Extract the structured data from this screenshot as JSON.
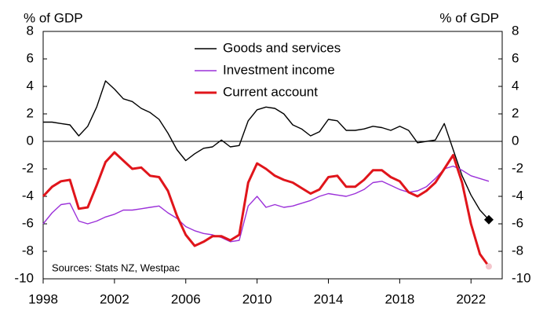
{
  "chart_data": {
    "type": "line",
    "ylabel": "% of GDP",
    "y2label": "% of GDP",
    "annotation": "Sources: Stats NZ, Westpac",
    "x": [
      1998,
      1998.5,
      1999,
      1999.5,
      2000,
      2000.5,
      2001,
      2001.5,
      2002,
      2002.5,
      2003,
      2003.5,
      2004,
      2004.5,
      2005,
      2005.5,
      2006,
      2006.5,
      2007,
      2007.5,
      2008,
      2008.5,
      2009,
      2009.5,
      2010,
      2010.5,
      2011,
      2011.5,
      2012,
      2012.5,
      2013,
      2013.5,
      2014,
      2014.5,
      2015,
      2015.5,
      2016,
      2016.5,
      2017,
      2017.5,
      2018,
      2018.5,
      2019,
      2019.5,
      2020,
      2020.5,
      2021,
      2021.5,
      2022,
      2022.5,
      2023
    ],
    "series": [
      {
        "name": "Goods and services",
        "color": "#000000",
        "marker": "diamond",
        "values": [
          1.4,
          1.4,
          1.3,
          1.2,
          0.4,
          1.1,
          2.5,
          4.4,
          3.8,
          3.1,
          2.9,
          2.4,
          2.1,
          1.6,
          0.6,
          -0.6,
          -1.4,
          -0.9,
          -0.5,
          -0.4,
          0.1,
          -0.4,
          -0.3,
          1.5,
          2.3,
          2.5,
          2.4,
          2.0,
          1.2,
          0.9,
          0.4,
          0.7,
          1.6,
          1.5,
          0.8,
          0.8,
          0.9,
          1.1,
          1.0,
          0.8,
          1.1,
          0.8,
          -0.1,
          0.0,
          0.1,
          1.3,
          -0.6,
          -2.5,
          -3.9,
          -5.0,
          -5.7
        ]
      },
      {
        "name": "Investment income",
        "color": "#9b30d9",
        "values": [
          -6.0,
          -5.2,
          -4.6,
          -4.5,
          -5.8,
          -6.0,
          -5.8,
          -5.5,
          -5.3,
          -5.0,
          -5.0,
          -4.9,
          -4.8,
          -4.7,
          -5.2,
          -5.6,
          -6.2,
          -6.5,
          -6.7,
          -6.8,
          -7.0,
          -7.3,
          -7.2,
          -4.7,
          -4.0,
          -4.8,
          -4.6,
          -4.8,
          -4.7,
          -4.5,
          -4.3,
          -4.0,
          -3.8,
          -3.9,
          -4.0,
          -3.8,
          -3.5,
          -3.0,
          -2.9,
          -3.2,
          -3.5,
          -3.7,
          -3.6,
          -3.3,
          -2.7,
          -2.0,
          -1.8,
          -2.1,
          -2.5,
          -2.7,
          -2.9
        ]
      },
      {
        "name": "Current account",
        "color": "#e0151b",
        "marker": "circle",
        "values": [
          -4.0,
          -3.3,
          -2.9,
          -2.8,
          -4.9,
          -4.8,
          -3.2,
          -1.5,
          -0.8,
          -1.4,
          -2.0,
          -1.9,
          -2.5,
          -2.6,
          -3.6,
          -5.4,
          -6.8,
          -7.6,
          -7.3,
          -6.9,
          -6.9,
          -7.2,
          -6.8,
          -3.0,
          -1.6,
          -2.0,
          -2.5,
          -2.8,
          -3.0,
          -3.4,
          -3.8,
          -3.5,
          -2.6,
          -2.5,
          -3.3,
          -3.3,
          -2.8,
          -2.1,
          -2.1,
          -2.6,
          -2.9,
          -3.7,
          -4.0,
          -3.6,
          -3.0,
          -2.0,
          -1.0,
          -3.0,
          -6.0,
          -8.2,
          -9.1
        ]
      }
    ],
    "xlim": [
      1998,
      2023.75
    ],
    "xticks": [
      1998,
      2002,
      2006,
      2010,
      2014,
      2018,
      2022
    ],
    "ylim": [
      -10,
      8
    ],
    "yticks": [
      -10,
      -8,
      -6,
      -4,
      -2,
      0,
      2,
      4,
      6,
      8
    ]
  }
}
